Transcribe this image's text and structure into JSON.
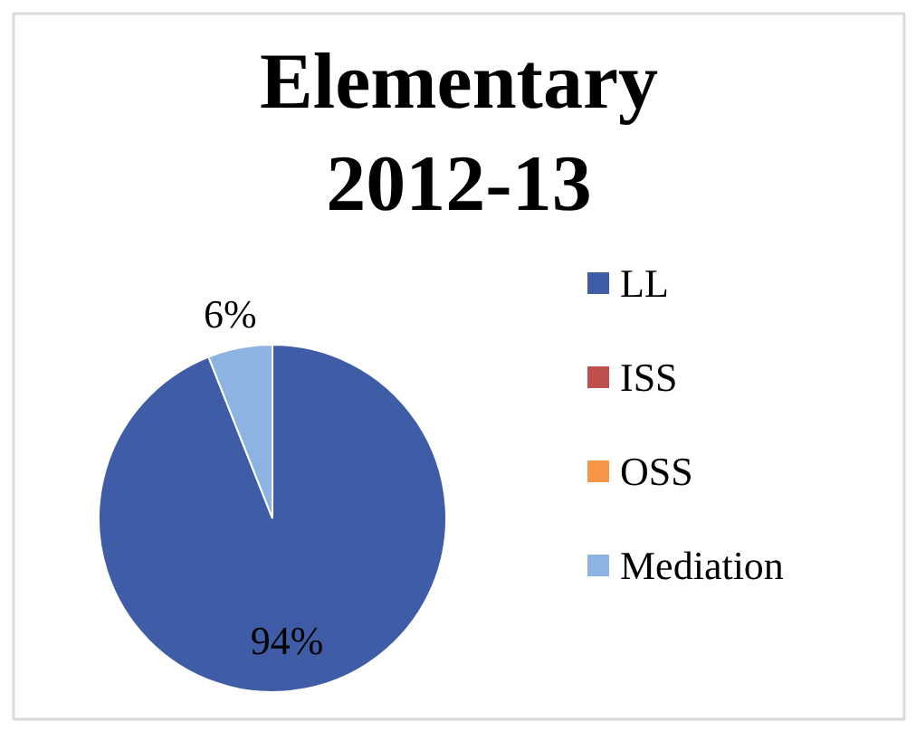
{
  "chart_data": {
    "type": "pie",
    "title": "Elementary 2012-13",
    "categories": [
      "LL",
      "ISS",
      "OSS",
      "Mediation"
    ],
    "values": [
      94,
      0,
      0,
      6
    ],
    "colors": [
      "#3f5ca6",
      "#c0504d",
      "#f79646",
      "#8db3e2"
    ],
    "value_labels": [
      "94%",
      null,
      null,
      "6%"
    ],
    "legend": "right"
  }
}
